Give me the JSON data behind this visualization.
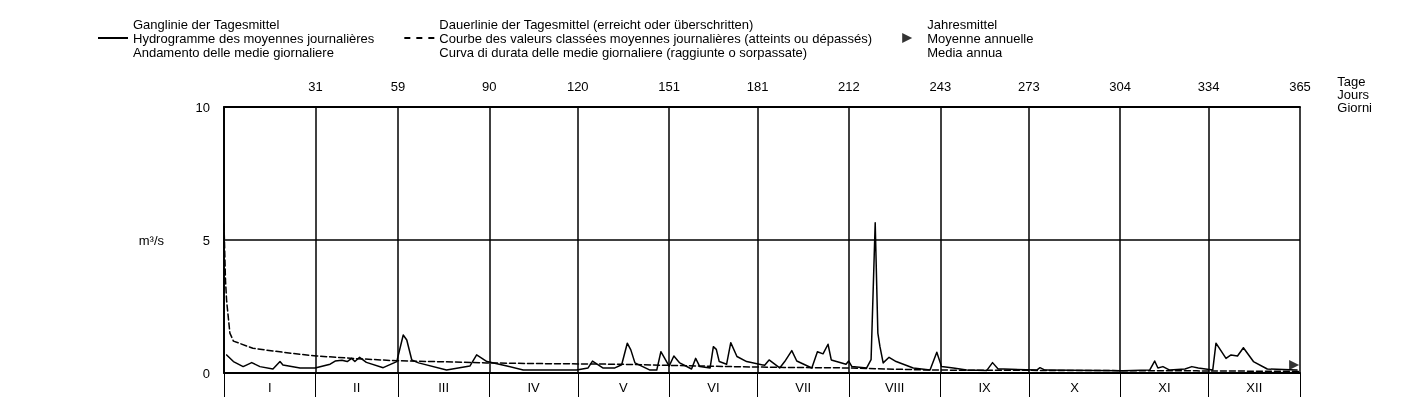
{
  "chart_data": {
    "type": "line",
    "ylabel": "m³/s",
    "xlabel": "Tage\nJours\nGiorni",
    "xlim": [
      0,
      365
    ],
    "ylim": [
      0,
      10
    ],
    "yticks": [
      0,
      5,
      10
    ],
    "xticks": [
      {
        "value": 0,
        "label": null
      },
      31,
      59,
      90,
      120,
      151,
      181,
      212,
      243,
      273,
      304,
      334,
      365
    ],
    "annotations": [
      "I",
      "II",
      "III",
      "IV",
      "V",
      "VI",
      "VII",
      "VIII",
      "IX",
      "X",
      "XI",
      "XII"
    ],
    "grid": true,
    "legend": "top",
    "series": [
      {
        "name": "Ganglinie der Tagesmittel\nHydrogramme des moyennes journalières\nAndamento delle medie giornaliere",
        "color": "#000000",
        "line_style": "solid",
        "marker": "none",
        "x": [
          0.9,
          3.2,
          6.5,
          9.4,
          12.2,
          16.6,
          19,
          20,
          25.8,
          30.9,
          36,
          37.7,
          40,
          41.8,
          43.3,
          44.4,
          46,
          48.3,
          54,
          58.6,
          60.8,
          62,
          63.7,
          66,
          75.5,
          83.4,
          85.7,
          89.2,
          96,
          101.5,
          119.6,
          123.5,
          125,
          128.5,
          132.6,
          134.9,
          136.8,
          138,
          139.4,
          144.5,
          146.8,
          148.2,
          151,
          152.6,
          154.6,
          158.6,
          160,
          161.4,
          164.9,
          166,
          167,
          168,
          170.5,
          171.9,
          174,
          177.3,
          183.4,
          184.9,
          188.5,
          190.2,
          192.6,
          194.3,
          199.4,
          201.3,
          203.2,
          204.9,
          206,
          211,
          211.9,
          213,
          218,
          219.5,
          220.9,
          221.8,
          222.5,
          223.6,
          225.6,
          228,
          233.8,
          239.5,
          241.8,
          243.4,
          247.4,
          251.9,
          258.7,
          260.7,
          262.6,
          264.5,
          275.7,
          276.8,
          278.5,
          305,
          314,
          315.7,
          316.8,
          318.5,
          320.8,
          326,
          328.3,
          330.5,
          335.4,
          336.5,
          339.9,
          341.6,
          343.8,
          345.8,
          349.2,
          353.9,
          364
        ],
        "values": [
          0.68,
          0.43,
          0.24,
          0.39,
          0.24,
          0.15,
          0.43,
          0.3,
          0.19,
          0.19,
          0.33,
          0.45,
          0.48,
          0.43,
          0.55,
          0.43,
          0.59,
          0.4,
          0.2,
          0.43,
          1.43,
          1.24,
          0.49,
          0.38,
          0.11,
          0.26,
          0.68,
          0.43,
          0.26,
          0.11,
          0.11,
          0.19,
          0.45,
          0.19,
          0.19,
          0.31,
          1.12,
          0.87,
          0.38,
          0.11,
          0.11,
          0.8,
          0.26,
          0.64,
          0.38,
          0.15,
          0.55,
          0.24,
          0.19,
          0.99,
          0.89,
          0.43,
          0.33,
          1.14,
          0.62,
          0.43,
          0.29,
          0.49,
          0.19,
          0.43,
          0.84,
          0.45,
          0.19,
          0.8,
          0.72,
          1.08,
          0.49,
          0.33,
          0.45,
          0.24,
          0.19,
          0.5,
          5.65,
          1.5,
          1.0,
          0.38,
          0.59,
          0.43,
          0.19,
          0.11,
          0.78,
          0.24,
          0.19,
          0.11,
          0.09,
          0.39,
          0.15,
          0.15,
          0.11,
          0.2,
          0.11,
          0.08,
          0.11,
          0.45,
          0.19,
          0.24,
          0.11,
          0.15,
          0.24,
          0.19,
          0.11,
          1.12,
          0.55,
          0.68,
          0.64,
          0.95,
          0.43,
          0.15,
          0.11
        ]
      },
      {
        "name": "Dauerlinie der Tagesmittel (erreicht oder überschritten)\nCourbe des valeurs classées moyennes journalières (atteints ou dépassés)\nCurva di durata delle medie giornaliere (raggiunte o sorpassate)",
        "color": "#000000",
        "line_style": "dashed",
        "marker": "none",
        "x": [
          0,
          0.5,
          0.9,
          2,
          3.2,
          9.8,
          20,
          31.3,
          45,
          58.6,
          75,
          89,
          110,
          134,
          150,
          172,
          190,
          212,
          225,
          240,
          270,
          300,
          330,
          365
        ],
        "values": [
          5.6,
          3.5,
          2.7,
          1.5,
          1.2,
          0.93,
          0.78,
          0.64,
          0.54,
          0.46,
          0.42,
          0.38,
          0.35,
          0.33,
          0.29,
          0.24,
          0.21,
          0.19,
          0.15,
          0.11,
          0.1,
          0.09,
          0.08,
          0.06
        ]
      },
      {
        "name": "Jahresmittel\nMoyenne annuelle\nMedia annua",
        "type": "scatter",
        "color": "#000000",
        "marker": "triangle",
        "x": [
          363
        ],
        "values": [
          0.3
        ]
      }
    ]
  }
}
